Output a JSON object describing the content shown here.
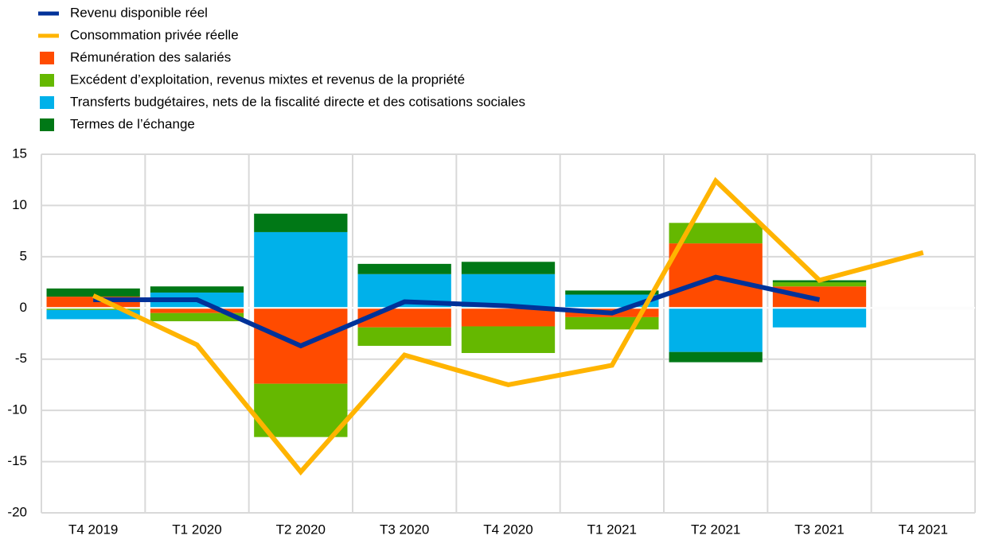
{
  "chart_data": {
    "type": "bar",
    "categories": [
      "T4 2019",
      "T1 2020",
      "T2 2020",
      "T3 2020",
      "T4 2020",
      "T1 2021",
      "T2 2021",
      "T3 2021",
      "T4 2021"
    ],
    "series": [
      {
        "name": "Revenu disponible réel",
        "type": "line",
        "color": "#003299",
        "values": [
          0.8,
          0.8,
          -3.7,
          0.6,
          0.2,
          -0.5,
          3.0,
          0.8,
          null
        ]
      },
      {
        "name": "Consommation privée réelle",
        "type": "line",
        "color": "#ffb400",
        "values": [
          1.2,
          -3.6,
          -16.0,
          -4.6,
          -7.5,
          -5.6,
          12.4,
          2.7,
          5.4
        ]
      },
      {
        "name": "Rémunération des salariés",
        "type": "bar",
        "color": "#ff4b00",
        "values": [
          1.1,
          -0.5,
          -7.4,
          -1.9,
          -1.8,
          -0.9,
          6.3,
          2.1,
          null
        ]
      },
      {
        "name": "Excédent d’exploitation, revenus mixtes et revenus de la propriété",
        "type": "bar",
        "color": "#65b800",
        "values": [
          -0.2,
          -0.8,
          -5.2,
          -1.8,
          -2.6,
          -1.2,
          2.0,
          0.4,
          null
        ]
      },
      {
        "name": "Transferts budgétaires, nets de la fiscalité directe et des cotisations sociales",
        "type": "bar",
        "color": "#00b1ea",
        "values": [
          -0.9,
          1.5,
          7.4,
          3.3,
          3.3,
          1.3,
          -4.3,
          -1.9,
          null
        ]
      },
      {
        "name": "Termes de l’échange",
        "type": "bar",
        "color": "#007816",
        "values": [
          0.8,
          0.6,
          1.8,
          1.0,
          1.2,
          0.4,
          -1.0,
          0.2,
          null
        ]
      }
    ],
    "ylim": [
      -20,
      15
    ],
    "yticks": [
      -20,
      -15,
      -10,
      -5,
      0,
      5,
      10,
      15
    ],
    "grid": true
  }
}
